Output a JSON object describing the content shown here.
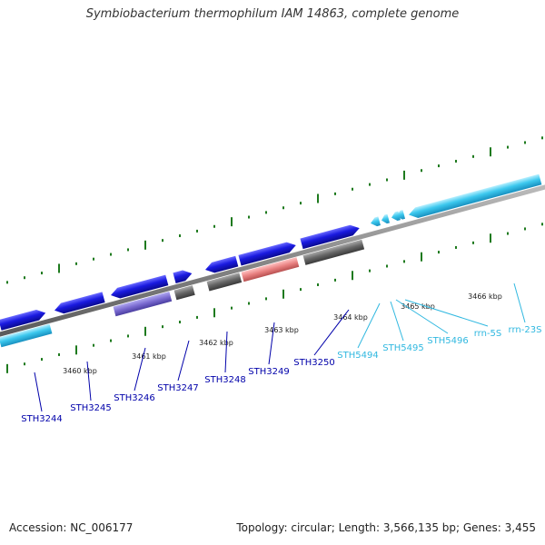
{
  "header": {
    "title": "Symbiobacterium thermophilum IAM 14863, complete genome"
  },
  "footer": {
    "accession": "Accession: NC_006177",
    "topology": "Topology: circular; Length: 3,566,135 bp; Genes: 3,455"
  },
  "scale_labels": [
    "3460 kbp",
    "3461 kbp",
    "3462 kbp",
    "3463 kbp",
    "3464 kbp",
    "3465 kbp",
    "3466 kbp"
  ],
  "colors": {
    "protein_gene": "#1a1ae0",
    "rna_gene": "#3cc8ee",
    "protein_label": "#0000aa",
    "rna_label": "#30b8e0",
    "backbone": "#888888",
    "tick": "#1e7a1e",
    "cds_grey": "#666666",
    "cds_purple": "#7a6ad0",
    "cds_pink": "#e88080"
  },
  "genes": [
    {
      "name": "STH3244",
      "type": "protein",
      "strand": "forward",
      "has_cds": true,
      "cds_color": "rna"
    },
    {
      "name": "STH3245",
      "type": "protein",
      "strand": "reverse",
      "has_cds": false
    },
    {
      "name": "STH3246",
      "type": "protein",
      "strand": "reverse",
      "has_cds": true,
      "cds_color": "purple"
    },
    {
      "name": "STH3247",
      "type": "protein",
      "strand": "forward",
      "has_cds": true,
      "cds_color": "grey"
    },
    {
      "name": "STH3248",
      "type": "protein",
      "strand": "reverse",
      "has_cds": true,
      "cds_color": "grey"
    },
    {
      "name": "STH3249",
      "type": "protein",
      "strand": "forward",
      "has_cds": true,
      "cds_color": "pink"
    },
    {
      "name": "STH3250",
      "type": "protein",
      "strand": "forward",
      "has_cds": true,
      "cds_color": "grey"
    },
    {
      "name": "STH5494",
      "type": "rna",
      "strand": "reverse",
      "has_cds": false
    },
    {
      "name": "STH5495",
      "type": "rna",
      "strand": "reverse",
      "has_cds": false
    },
    {
      "name": "STH5496",
      "type": "rna",
      "strand": "reverse",
      "has_cds": false
    },
    {
      "name": "rrn-5S",
      "type": "rna",
      "strand": "reverse",
      "has_cds": false
    },
    {
      "name": "rrn-23S",
      "type": "rna",
      "strand": "reverse",
      "has_cds": false
    }
  ]
}
